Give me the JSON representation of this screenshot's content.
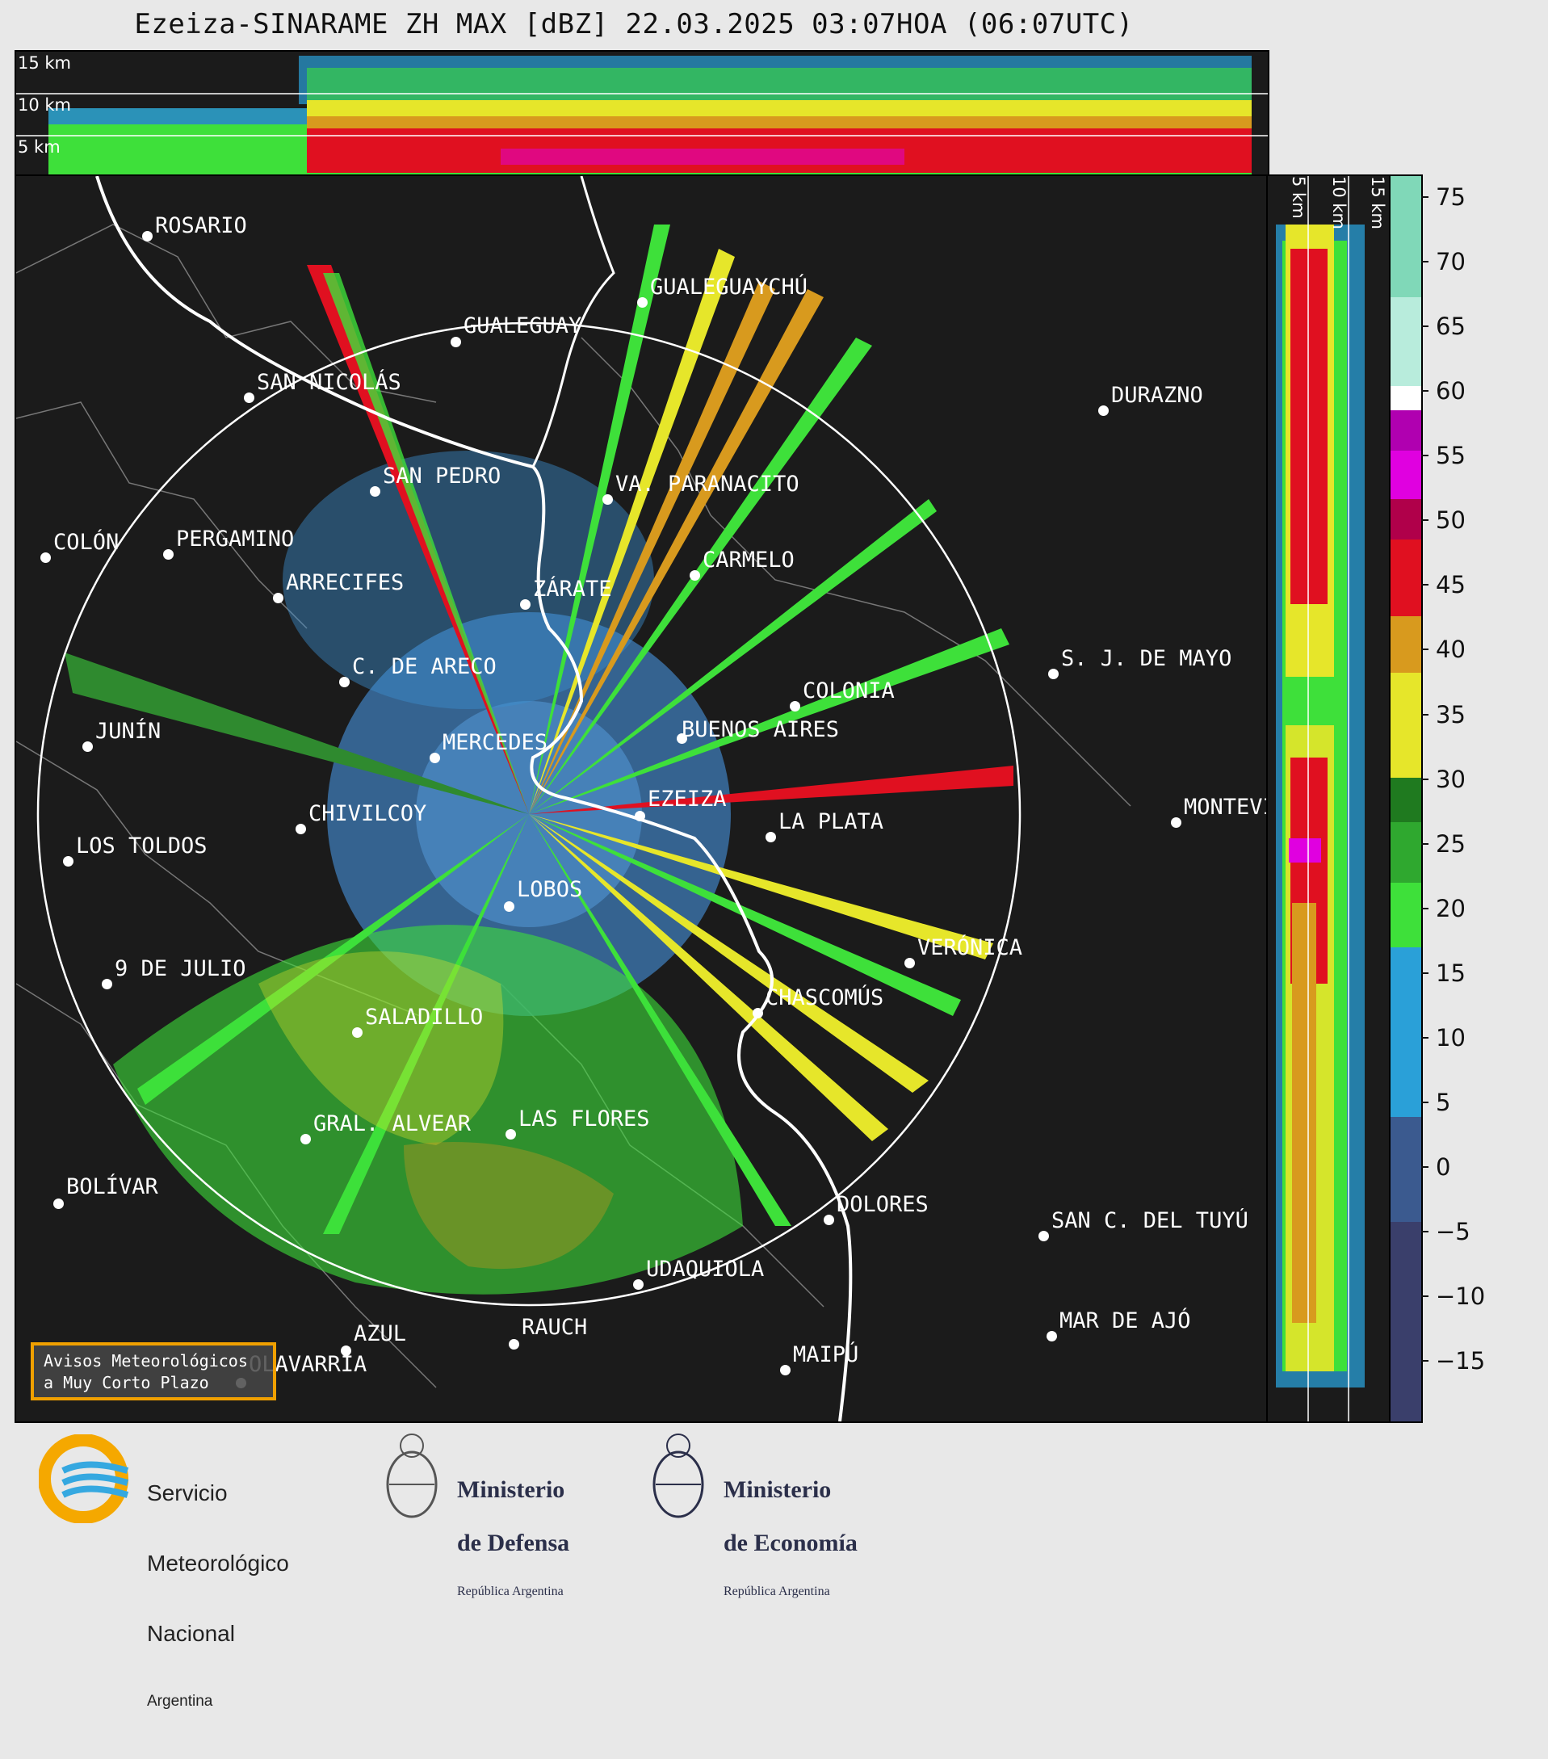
{
  "title": "Ezeiza-SINARAME ZH MAX [dBZ] 22.03.2025 03:07HOA (06:07UTC)",
  "top_panel": {
    "height_labels": [
      "15 km",
      "10 km",
      "5 km"
    ]
  },
  "side_panel": {
    "height_labels": [
      "5 km",
      "10 km",
      "15 km"
    ]
  },
  "colorbar": {
    "unit": "dBZ",
    "ticks": [
      "75",
      "70",
      "65",
      "60",
      "55",
      "50",
      "45",
      "40",
      "35",
      "30",
      "25",
      "20",
      "15",
      "10",
      "5",
      "0",
      "−5",
      "−10",
      "−15"
    ],
    "colors": {
      "bands": [
        "#3a3f6b",
        "#3b5a8f",
        "#2f76ae",
        "#2aa0d8",
        "#3ee03a",
        "#1f7a1f",
        "#e6e62a",
        "#d89a1e",
        "#e01020",
        "#b0004a",
        "#e000e0",
        "#ffffff",
        "#a8e8d8",
        "#80d8b8"
      ]
    }
  },
  "cities": [
    {
      "name": "ROSARIO"
    },
    {
      "name": "GUALEGUAYCHÚ"
    },
    {
      "name": "GUALEGUAY"
    },
    {
      "name": "SAN NICOLÁS"
    },
    {
      "name": "DURAZNO"
    },
    {
      "name": "SAN PEDRO"
    },
    {
      "name": "VA. PARANACITO"
    },
    {
      "name": "COLÓN"
    },
    {
      "name": "PERGAMINO"
    },
    {
      "name": "CARMELO"
    },
    {
      "name": "ARRECIFES"
    },
    {
      "name": "ZÁRATE"
    },
    {
      "name": "C. DE ARECO"
    },
    {
      "name": "S. J. DE MAYO"
    },
    {
      "name": "COLONIA"
    },
    {
      "name": "JUNÍN"
    },
    {
      "name": "MERCEDES"
    },
    {
      "name": "BUENOS AIRES"
    },
    {
      "name": "EZEIZA"
    },
    {
      "name": "MONTEVIDEO"
    },
    {
      "name": "CHIVILCOY"
    },
    {
      "name": "LA PLATA"
    },
    {
      "name": "LOS TOLDOS"
    },
    {
      "name": "LOBOS"
    },
    {
      "name": "VERÓNICA"
    },
    {
      "name": "9 DE JULIO"
    },
    {
      "name": "CHASCOMÚS"
    },
    {
      "name": "SALADILLO"
    },
    {
      "name": "GRAL. ALVEAR"
    },
    {
      "name": "LAS FLORES"
    },
    {
      "name": "BOLÍVAR"
    },
    {
      "name": "DOLORES"
    },
    {
      "name": "SAN C. DEL TUYÚ"
    },
    {
      "name": "UDAQUIOLA"
    },
    {
      "name": "MAR DE AJÓ"
    },
    {
      "name": "AZUL"
    },
    {
      "name": "RAUCH"
    },
    {
      "name": "OLAVARRÍA"
    },
    {
      "name": "MAIPÚ"
    }
  ],
  "avisos": {
    "line1": "Avisos Meteorológicos",
    "line2": "a Muy Corto Plazo"
  },
  "footer": {
    "smn": {
      "line1": "Servicio",
      "line2": "Meteorológico",
      "line3": "Nacional",
      "line4": "Argentina"
    },
    "defensa": {
      "line1": "Ministerio",
      "line2": "de Defensa",
      "line3": "República Argentina"
    },
    "economia": {
      "line1": "Ministerio",
      "line2": "de Economía",
      "line3": "República Argentina"
    }
  }
}
